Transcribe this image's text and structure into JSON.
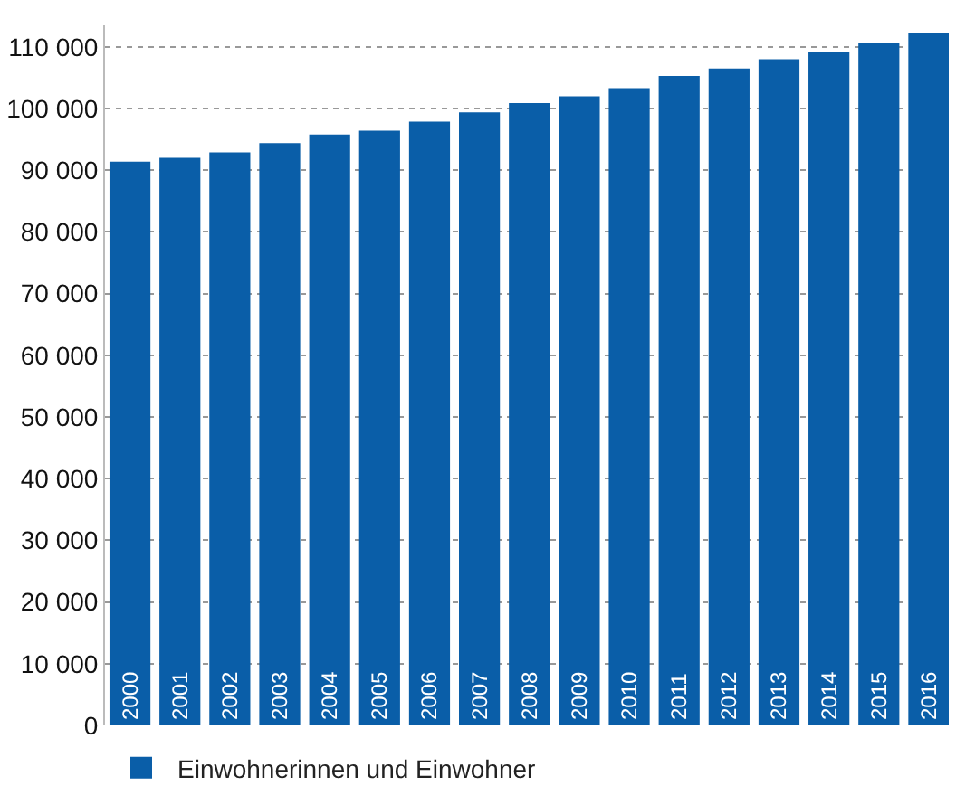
{
  "chart_data": {
    "type": "bar",
    "categories": [
      "2000",
      "2001",
      "2002",
      "2003",
      "2004",
      "2005",
      "2006",
      "2007",
      "2008",
      "2009",
      "2010",
      "2011",
      "2012",
      "2013",
      "2014",
      "2015",
      "2016"
    ],
    "series": [
      {
        "name": "Einwohnerinnen und Einwohner",
        "color": "#0a5ea8",
        "values": [
          91400,
          92000,
          92900,
          94400,
          95800,
          96400,
          97900,
          99400,
          100900,
          102000,
          103300,
          105300,
          106500,
          108000,
          109200,
          110700,
          112200
        ]
      }
    ],
    "ylim": [
      0,
      113500
    ],
    "yticks": [
      {
        "value": 0,
        "label": "0"
      },
      {
        "value": 10000,
        "label": "10 000"
      },
      {
        "value": 20000,
        "label": "20 000"
      },
      {
        "value": 30000,
        "label": "30 000"
      },
      {
        "value": 40000,
        "label": "40 000"
      },
      {
        "value": 50000,
        "label": "50 000"
      },
      {
        "value": 60000,
        "label": "60 000"
      },
      {
        "value": 70000,
        "label": "70 000"
      },
      {
        "value": 80000,
        "label": "80 000"
      },
      {
        "value": 90000,
        "label": "90 000"
      },
      {
        "value": 100000,
        "label": "100 000"
      },
      {
        "value": 110000,
        "label": "110 000"
      }
    ],
    "grid": "y",
    "legend": "bottom left"
  }
}
